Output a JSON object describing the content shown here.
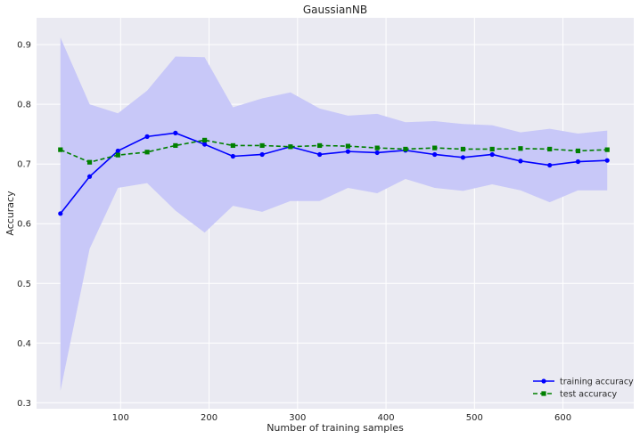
{
  "chart_data": {
    "type": "line",
    "title": "GaussianNB",
    "xlabel": "Number of training samples",
    "ylabel": "Accuracy",
    "xlim": [
      5,
      680
    ],
    "ylim": [
      0.29,
      0.945
    ],
    "xticks": [
      100,
      200,
      300,
      400,
      500,
      600
    ],
    "yticks": [
      0.3,
      0.4,
      0.5,
      0.6,
      0.7,
      0.8,
      0.9
    ],
    "grid": true,
    "legend_position": "bottom-right",
    "x": [
      32,
      65,
      97,
      130,
      162,
      195,
      227,
      260,
      292,
      325,
      357,
      390,
      422,
      455,
      487,
      520,
      552,
      585,
      617,
      650
    ],
    "band": {
      "upper": [
        0.912,
        0.8,
        0.785,
        0.823,
        0.88,
        0.879,
        0.795,
        0.81,
        0.82,
        0.793,
        0.781,
        0.784,
        0.77,
        0.772,
        0.767,
        0.765,
        0.753,
        0.759,
        0.751,
        0.756
      ],
      "lower": [
        0.32,
        0.558,
        0.66,
        0.668,
        0.622,
        0.585,
        0.63,
        0.62,
        0.638,
        0.638,
        0.66,
        0.651,
        0.675,
        0.66,
        0.655,
        0.666,
        0.656,
        0.636,
        0.656,
        0.656
      ],
      "color": "#c8c8f8"
    },
    "series": [
      {
        "name": "training accuracy",
        "color": "#0000ff",
        "style": "solid",
        "marker": "circle",
        "values": [
          0.617,
          0.679,
          0.722,
          0.746,
          0.752,
          0.733,
          0.713,
          0.716,
          0.729,
          0.716,
          0.721,
          0.719,
          0.723,
          0.716,
          0.711,
          0.716,
          0.705,
          0.698,
          0.704,
          0.706
        ]
      },
      {
        "name": "test accuracy",
        "color": "#008000",
        "style": "dashed",
        "marker": "square",
        "values": [
          0.724,
          0.703,
          0.715,
          0.72,
          0.731,
          0.74,
          0.731,
          0.731,
          0.729,
          0.731,
          0.73,
          0.727,
          0.725,
          0.727,
          0.725,
          0.725,
          0.726,
          0.725,
          0.722,
          0.724
        ]
      }
    ]
  }
}
